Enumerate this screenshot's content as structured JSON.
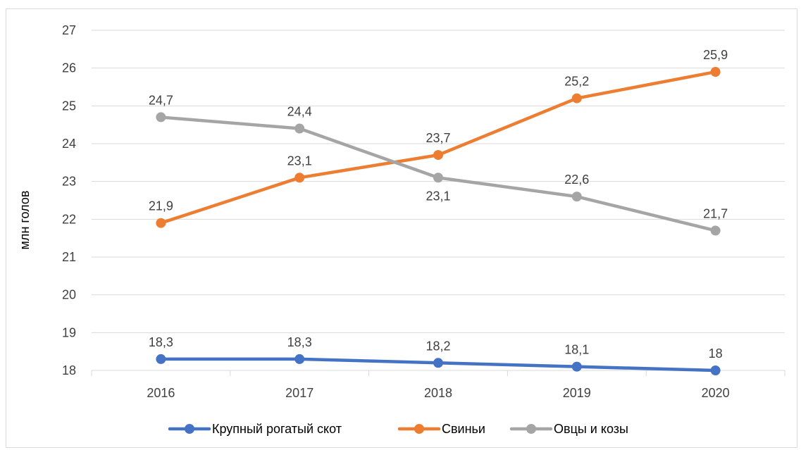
{
  "chart_data": {
    "type": "line",
    "title": "",
    "xlabel": "",
    "ylabel": "млн голов",
    "x": [
      "2016",
      "2017",
      "2018",
      "2019",
      "2020"
    ],
    "ylim": [
      18,
      27
    ],
    "yticks": [
      18,
      19,
      20,
      21,
      22,
      23,
      24,
      25,
      26,
      27
    ],
    "grid": true,
    "legend_position": "bottom",
    "series": [
      {
        "name": "Крупный рогатый скот",
        "color": "#4472C4",
        "values": [
          18.3,
          18.3,
          18.2,
          18.1,
          18.0
        ],
        "labels": [
          "18,3",
          "18,3",
          "18,2",
          "18,1",
          "18"
        ],
        "label_position": "above"
      },
      {
        "name": "Свиньи",
        "color": "#ED7D31",
        "values": [
          21.9,
          23.1,
          23.7,
          25.2,
          25.9
        ],
        "labels": [
          "21,9",
          "23,1",
          "23,7",
          "25,2",
          "25,9"
        ],
        "label_position": "above"
      },
      {
        "name": "Овцы и козы",
        "color": "#A5A5A5",
        "values": [
          24.7,
          24.4,
          23.1,
          22.6,
          21.7
        ],
        "labels": [
          "24,7",
          "24,4",
          "23,1",
          "22,6",
          "21,7"
        ],
        "label_position": "above",
        "label_below_indices": [
          2
        ]
      }
    ],
    "gridline_color": "#d9d9d9"
  }
}
